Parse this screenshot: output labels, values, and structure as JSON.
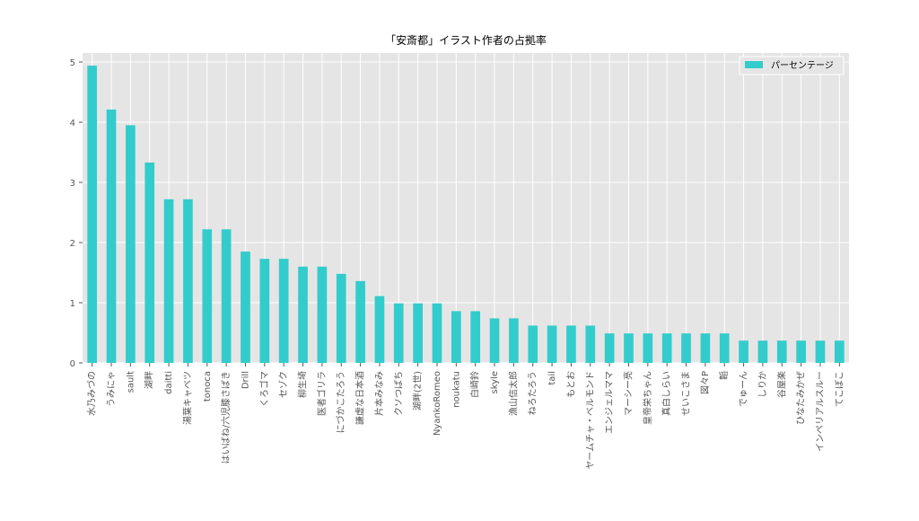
{
  "chart_data": {
    "type": "bar",
    "title": "「安斎都」イラスト作者の占拠率",
    "xlabel": "",
    "ylabel": "",
    "ylim": [
      0,
      5.15
    ],
    "yticks": [
      0,
      1,
      2,
      3,
      4,
      5
    ],
    "grid": true,
    "legend_position": "top-right",
    "bar_color": "#33cccc",
    "plot_background": "#e5e5e5",
    "categories": [
      "水乃みづの",
      "うみにゃ",
      "sault",
      "湖畔",
      "daitti",
      "湯葉キャベツ",
      "tonoca",
      "はいばね/六児膝さばき",
      "Drill",
      "くろゴマ",
      "セゾク",
      "柳生埼",
      "医者ゴリラ",
      "にづかこたろう",
      "謙虚な日本酒",
      "片本みなみ",
      "クソつばち",
      "湖畔(2世)",
      "NyankoRomeo",
      "noukatu",
      "白崎鈴",
      "skyle",
      "漁山信太郎",
      "ねろたろう",
      "tail",
      "もとお",
      "ヤームチャ・ベルモンド",
      "エンジェルママ",
      "マーシー亮",
      "皇帝栄ちゃん",
      "真白しらい",
      "せいこさま",
      "図々P",
      "韜",
      "でゅーん",
      "しりか",
      "谷屋楽",
      "ひなたみかぜ",
      "インペリアルスルー",
      "てこぼこ"
    ],
    "series": [
      {
        "name": "パーセンテージ",
        "values": [
          4.94,
          4.21,
          3.95,
          3.33,
          2.72,
          2.72,
          2.22,
          2.22,
          1.85,
          1.73,
          1.73,
          1.6,
          1.6,
          1.48,
          1.36,
          1.11,
          0.99,
          0.99,
          0.99,
          0.86,
          0.86,
          0.74,
          0.74,
          0.62,
          0.62,
          0.62,
          0.62,
          0.49,
          0.49,
          0.49,
          0.49,
          0.49,
          0.49,
          0.49,
          0.37,
          0.37,
          0.37,
          0.37,
          0.37,
          0.37
        ]
      }
    ]
  }
}
